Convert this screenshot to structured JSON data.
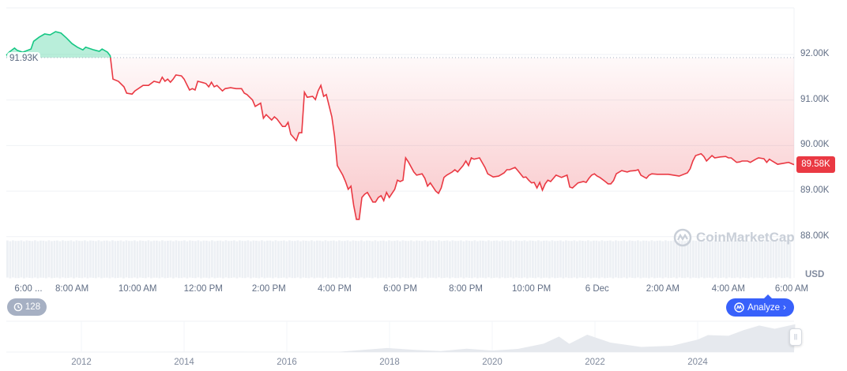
{
  "chart_data": {
    "type": "area",
    "currency_label": "USD",
    "reference": {
      "value": 91.93,
      "label": "91.93K"
    },
    "current": {
      "value": 89.58,
      "label": "89.58K"
    },
    "ylim": [
      87.85,
      92.95
    ],
    "y_ticks": [
      {
        "value": 92,
        "label": "92.00K"
      },
      {
        "value": 91,
        "label": "91.00K"
      },
      {
        "value": 90,
        "label": "90.00K"
      },
      {
        "value": 89,
        "label": "89.00K"
      },
      {
        "value": 88,
        "label": "88.00K"
      }
    ],
    "x_ticks": [
      "6:00 ...",
      "8:00 AM",
      "10:00 AM",
      "12:00 PM",
      "2:00 PM",
      "4:00 PM",
      "6:00 PM",
      "8:00 PM",
      "10:00 PM",
      "6 Dec",
      "2:00 AM",
      "4:00 AM",
      "6:00 AM"
    ],
    "grid": true,
    "colors": {
      "up": "#16c784",
      "down": "#ea3943",
      "accent": "#3861fb"
    },
    "series": [
      {
        "unit": "K USD",
        "x": [
          "06:00",
          "06:05",
          "06:15",
          "06:20",
          "06:30",
          "06:45",
          "06:50",
          "07:00",
          "07:10",
          "07:20",
          "07:30",
          "07:40",
          "07:50",
          "08:00",
          "08:10",
          "08:20",
          "08:25",
          "08:40",
          "08:50",
          "08:55",
          "09:05",
          "09:10",
          "09:15",
          "09:25",
          "09:35",
          "09:40",
          "09:50",
          "09:55",
          "10:10",
          "10:20",
          "10:30",
          "10:40",
          "10:45",
          "10:50",
          "10:55",
          "11:00",
          "11:05",
          "11:10",
          "11:20",
          "11:25",
          "11:35",
          "11:40",
          "11:45",
          "11:50",
          "12:00",
          "12:05",
          "12:10",
          "12:15",
          "12:20",
          "12:25",
          "12:35",
          "12:40",
          "12:50",
          "13:00",
          "13:10",
          "13:15",
          "13:20",
          "13:30",
          "13:35",
          "13:45",
          "13:50",
          "13:55",
          "14:05",
          "14:10",
          "14:15",
          "14:25",
          "14:30",
          "14:35",
          "14:40",
          "14:50",
          "14:55",
          "15:00",
          "15:05",
          "15:10",
          "15:20",
          "15:25",
          "15:30",
          "15:35",
          "15:40",
          "15:45",
          "15:55",
          "16:00",
          "16:05",
          "16:15",
          "16:20",
          "16:25",
          "16:30",
          "16:35",
          "16:40",
          "16:45",
          "16:50",
          "16:55",
          "17:00",
          "17:10",
          "17:15",
          "17:20",
          "17:25",
          "17:30",
          "17:35",
          "17:40",
          "17:50",
          "17:55",
          "18:00",
          "18:05",
          "18:10",
          "18:15",
          "18:25",
          "18:30",
          "18:40",
          "18:45",
          "18:50",
          "18:55",
          "19:05",
          "19:10",
          "19:15",
          "19:20",
          "19:25",
          "19:35",
          "19:40",
          "19:45",
          "19:55",
          "20:00",
          "20:05",
          "20:10",
          "20:15",
          "20:25",
          "20:35",
          "20:40",
          "20:50",
          "21:00",
          "21:10",
          "21:15",
          "21:20",
          "21:30",
          "21:35",
          "21:45",
          "21:50",
          "21:55",
          "22:00",
          "22:05",
          "22:10",
          "22:15",
          "22:20",
          "22:25",
          "22:30",
          "22:35",
          "22:40",
          "22:45",
          "22:55",
          "23:05",
          "23:10",
          "23:15",
          "23:25",
          "23:35",
          "23:40",
          "23:45",
          "23:50",
          "23:55",
          "00:00",
          "00:05",
          "00:15",
          "00:20",
          "00:25",
          "00:30",
          "00:35",
          "00:45",
          "00:55",
          "01:00",
          "01:10",
          "01:15",
          "01:20",
          "01:30",
          "01:35",
          "01:40",
          "01:50",
          "01:55",
          "02:10",
          "02:20",
          "02:30",
          "02:45",
          "02:50",
          "02:55",
          "03:00",
          "03:10",
          "03:15",
          "03:20",
          "03:30",
          "03:35",
          "03:45",
          "03:55",
          "04:00",
          "04:05",
          "04:15",
          "04:20",
          "04:25",
          "04:35",
          "04:40",
          "04:50",
          "04:55",
          "05:05",
          "05:10",
          "05:15",
          "05:20",
          "05:30",
          "05:40",
          "05:50",
          "06:00"
        ],
        "y": [
          91.98,
          92.05,
          92.14,
          92.09,
          92.05,
          92.12,
          92.29,
          92.38,
          92.45,
          92.43,
          92.5,
          92.47,
          92.36,
          92.24,
          92.16,
          92.1,
          92.16,
          92.1,
          92.07,
          92.12,
          92.05,
          91.97,
          91.46,
          91.41,
          91.29,
          91.15,
          91.13,
          91.2,
          91.32,
          91.32,
          91.41,
          91.38,
          91.5,
          91.41,
          91.46,
          91.39,
          91.46,
          91.55,
          91.53,
          91.46,
          91.22,
          91.25,
          91.22,
          91.41,
          91.38,
          91.36,
          91.29,
          91.39,
          91.29,
          91.32,
          91.2,
          91.25,
          91.27,
          91.25,
          91.25,
          91.15,
          91.12,
          91.0,
          90.86,
          90.93,
          90.6,
          90.68,
          90.56,
          90.63,
          90.58,
          90.42,
          90.42,
          90.51,
          90.25,
          90.11,
          90.28,
          90.28,
          91.17,
          91.06,
          91.08,
          91.01,
          91.2,
          91.32,
          91.08,
          91.12,
          90.63,
          90.21,
          89.56,
          89.35,
          89.21,
          89.04,
          89.11,
          88.69,
          88.38,
          88.38,
          88.86,
          88.93,
          88.97,
          88.76,
          88.76,
          88.86,
          88.9,
          88.79,
          88.97,
          88.86,
          89.04,
          89.24,
          89.21,
          89.24,
          89.73,
          89.64,
          89.42,
          89.35,
          89.38,
          89.28,
          89.11,
          89.18,
          89.0,
          88.95,
          89.07,
          89.3,
          89.35,
          89.42,
          89.47,
          89.42,
          89.56,
          89.66,
          89.56,
          89.73,
          89.7,
          89.73,
          89.52,
          89.38,
          89.31,
          89.33,
          89.4,
          89.47,
          89.47,
          89.52,
          89.45,
          89.3,
          89.31,
          89.24,
          89.18,
          89.19,
          89.07,
          89.19,
          89.02,
          89.16,
          89.24,
          89.21,
          89.28,
          89.35,
          89.3,
          89.35,
          89.09,
          89.07,
          89.18,
          89.21,
          89.19,
          89.28,
          89.35,
          89.38,
          89.33,
          89.3,
          89.21,
          89.16,
          89.16,
          89.23,
          89.38,
          89.45,
          89.42,
          89.44,
          89.45,
          89.47,
          89.35,
          89.28,
          89.35,
          89.38,
          89.37,
          89.37,
          89.37,
          89.35,
          89.33,
          89.4,
          89.49,
          89.66,
          89.78,
          89.82,
          89.76,
          89.66,
          89.78,
          89.73,
          89.75,
          89.76,
          89.73,
          89.73,
          89.63,
          89.64,
          89.66,
          89.66,
          89.63,
          89.7,
          89.73,
          89.71,
          89.63,
          89.7,
          89.66,
          89.59,
          89.61,
          89.63,
          89.58
        ]
      }
    ]
  },
  "navigator": {
    "year_labels": [
      "2012",
      "2014",
      "2016",
      "2018",
      "2020",
      "2022",
      "2024"
    ],
    "years": [
      2010.6,
      2012,
      2013,
      2013.9,
      2014.5,
      2016,
      2017,
      2017.95,
      2018.5,
      2019,
      2019.5,
      2020,
      2020.5,
      2021,
      2021.3,
      2021.5,
      2021.85,
      2022.3,
      2022.9,
      2023.5,
      2024,
      2024.2,
      2024.6,
      2024.9,
      2025.2,
      2025.5,
      2025.9
    ],
    "values": [
      0,
      5,
      100,
      900,
      500,
      400,
      1000,
      17000,
      7000,
      4000,
      11000,
      8000,
      10000,
      35000,
      58000,
      35000,
      65000,
      40000,
      17000,
      28000,
      45000,
      70000,
      60000,
      90000,
      100000,
      95000,
      105000
    ]
  },
  "ui": {
    "history_count": "128",
    "analyze_label": "Analyze",
    "watermark": "CoinMarketCap"
  }
}
